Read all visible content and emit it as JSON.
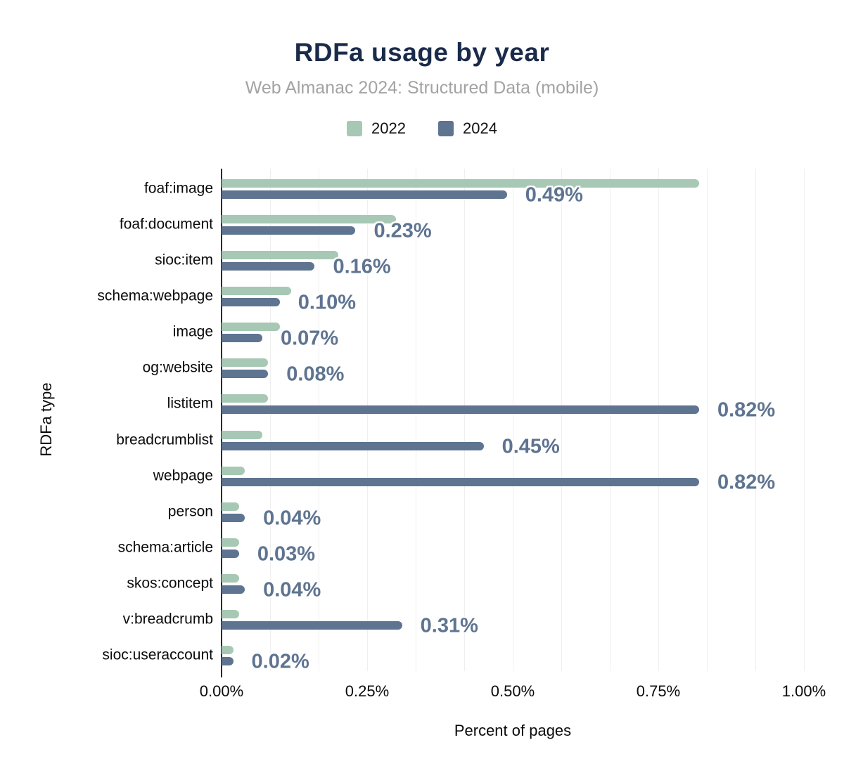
{
  "header": {
    "title": "RDFa usage by year",
    "subtitle": "Web Almanac 2024: Structured Data (mobile)"
  },
  "legend": [
    {
      "label": "2022",
      "color": "#a7c8b4"
    },
    {
      "label": "2024",
      "color": "#5e7491"
    }
  ],
  "colors": {
    "title": "#1a2b4a",
    "subtitle": "#a3a3a3",
    "series_2022": "#a7c8b4",
    "series_2024": "#5e7491",
    "value_label": "#5e7491",
    "value_label_halo": "#ffffff",
    "gridline": "#efefef",
    "axis_line": "#2b2b2b",
    "axis_text": "#0a0a0a",
    "background": "#ffffff"
  },
  "chart_data": {
    "type": "bar",
    "orientation": "horizontal",
    "title": "RDFa usage by year",
    "subtitle": "Web Almanac 2024: Structured Data (mobile)",
    "categories": [
      "foaf:image",
      "foaf:document",
      "sioc:item",
      "schema:webpage",
      "image",
      "og:website",
      "listitem",
      "breadcrumblist",
      "webpage",
      "person",
      "schema:article",
      "skos:concept",
      "v:breadcrumb",
      "sioc:useraccount"
    ],
    "series": [
      {
        "name": "2022",
        "color": "#a7c8b4",
        "values": [
          0.82,
          0.3,
          0.2,
          0.12,
          0.1,
          0.08,
          0.08,
          0.07,
          0.04,
          0.03,
          0.03,
          0.03,
          0.03,
          0.02
        ],
        "data_labels": null
      },
      {
        "name": "2024",
        "color": "#5e7491",
        "values": [
          0.49,
          0.23,
          0.16,
          0.1,
          0.07,
          0.08,
          0.82,
          0.45,
          0.82,
          0.04,
          0.03,
          0.04,
          0.31,
          0.02
        ],
        "data_labels": [
          "0.49%",
          "0.23%",
          "0.16%",
          "0.10%",
          "0.07%",
          "0.08%",
          "0.82%",
          "0.45%",
          "0.82%",
          "0.04%",
          "0.03%",
          "0.04%",
          "0.31%",
          "0.02%"
        ]
      }
    ],
    "xlabel": "Percent of pages",
    "ylabel": "RDFa type",
    "xlim": [
      0,
      1.0
    ],
    "x_tick_values": [
      0,
      0.25,
      0.5,
      0.75,
      1.0
    ],
    "x_tick_labels": [
      "0.00%",
      "0.25%",
      "0.50%",
      "0.75%",
      "1.00%"
    ],
    "grid": "vertical minor gridlines, 12 per 1%",
    "legend_position": "top-center",
    "value_labels_on": "2024 series only"
  }
}
